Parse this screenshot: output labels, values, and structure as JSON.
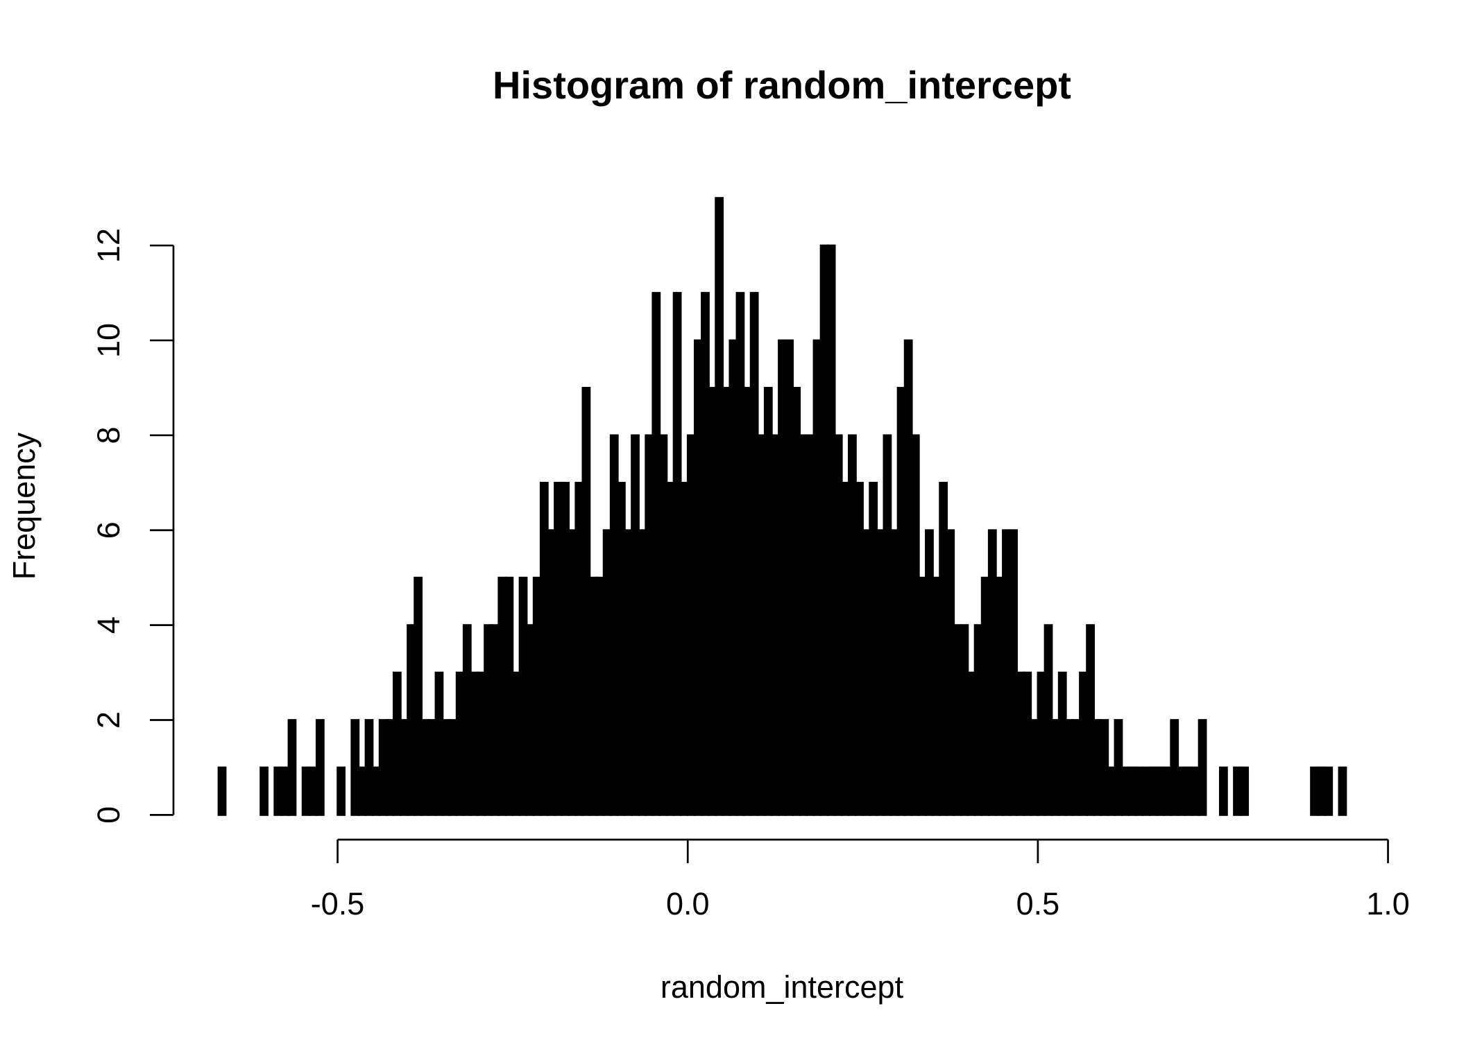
{
  "chart_data": {
    "type": "histogram",
    "title": "Histogram of random_intercept",
    "x_label": "random_intercept",
    "y_label": "Frequency",
    "color": "#000000",
    "bins": [
      -0.67,
      -0.66,
      -0.65,
      -0.64,
      -0.63,
      -0.62,
      -0.61,
      -0.6,
      -0.59,
      -0.58,
      -0.57,
      -0.56,
      -0.55,
      -0.54,
      -0.53,
      -0.52,
      -0.51,
      -0.5,
      -0.49,
      -0.48,
      -0.47,
      -0.46,
      -0.45,
      -0.44,
      -0.43,
      -0.42,
      -0.41,
      -0.4,
      -0.39,
      -0.38,
      -0.37,
      -0.36,
      -0.35,
      -0.34,
      -0.33,
      -0.32,
      -0.31,
      -0.3,
      -0.29,
      -0.28,
      -0.27,
      -0.26,
      -0.25,
      -0.24,
      -0.23,
      -0.22,
      -0.21,
      -0.2,
      -0.19,
      -0.18,
      -0.17,
      -0.16,
      -0.15,
      -0.14,
      -0.13,
      -0.12,
      -0.11,
      -0.1,
      -0.09,
      -0.08,
      -0.07,
      -0.06,
      -0.05,
      -0.04,
      -0.03,
      -0.02,
      -0.01,
      0,
      0.01,
      0.02,
      0.03,
      0.04,
      0.05,
      0.06,
      0.07,
      0.08,
      0.09,
      0.1,
      0.11,
      0.12,
      0.13,
      0.14,
      0.15,
      0.16,
      0.17,
      0.18,
      0.19,
      0.2,
      0.21,
      0.22,
      0.23,
      0.24,
      0.25,
      0.26,
      0.27,
      0.28,
      0.29,
      0.3,
      0.31,
      0.32,
      0.33,
      0.34,
      0.35,
      0.36,
      0.37,
      0.38,
      0.39,
      0.4,
      0.41,
      0.42,
      0.43,
      0.44,
      0.45,
      0.46,
      0.47,
      0.48,
      0.49,
      0.5,
      0.51,
      0.52,
      0.53,
      0.54,
      0.55,
      0.56,
      0.57,
      0.58,
      0.59,
      0.6,
      0.61,
      0.62,
      0.63,
      0.64,
      0.65,
      0.66,
      0.67,
      0.68,
      0.69,
      0.7,
      0.71,
      0.72,
      0.73,
      0.74,
      0.75,
      0.76,
      0.77,
      0.78,
      0.79,
      0.8,
      0.81,
      0.82,
      0.83,
      0.84,
      0.85,
      0.86,
      0.87,
      0.88,
      0.89,
      0.9,
      0.91,
      0.92,
      0.93,
      0.94
    ],
    "values": [
      1,
      0,
      0,
      0,
      0,
      0,
      1,
      0,
      1,
      1,
      2,
      0,
      1,
      1,
      2,
      0,
      0,
      1,
      0,
      2,
      1,
      2,
      1,
      2,
      2,
      3,
      2,
      4,
      5,
      2,
      2,
      3,
      2,
      2,
      3,
      4,
      3,
      3,
      4,
      4,
      5,
      5,
      3,
      5,
      4,
      5,
      7,
      6,
      7,
      7,
      6,
      7,
      9,
      5,
      5,
      6,
      8,
      7,
      6,
      8,
      6,
      8,
      11,
      8,
      7,
      11,
      7,
      8,
      10,
      11,
      9,
      13,
      9,
      10,
      11,
      9,
      11,
      8,
      9,
      8,
      10,
      10,
      9,
      8,
      8,
      10,
      12,
      12,
      8,
      7,
      8,
      7,
      6,
      7,
      6,
      8,
      6,
      9,
      10,
      8,
      5,
      6,
      5,
      7,
      6,
      4,
      4,
      3,
      4,
      5,
      6,
      5,
      6,
      6,
      3,
      3,
      2,
      3,
      4,
      2,
      3,
      2,
      2,
      3,
      4,
      2,
      2,
      1,
      2,
      1,
      1,
      1,
      1,
      1,
      1,
      1,
      2,
      1,
      1,
      1,
      2,
      0,
      0,
      1,
      0,
      1,
      1,
      0,
      0,
      0,
      0,
      0,
      0,
      0,
      0,
      0,
      1,
      1,
      1,
      0,
      1
    ],
    "xlim": [
      -0.7344,
      1.0044
    ],
    "ylim": [
      -0.52,
      13.52
    ],
    "xticks": [
      -0.5,
      {
        "value": 0,
        "label": "0.0"
      },
      0.5,
      {
        "value": 1,
        "label": "1.0"
      }
    ],
    "yticks": [
      0,
      2,
      4,
      6,
      8,
      10,
      12
    ]
  }
}
